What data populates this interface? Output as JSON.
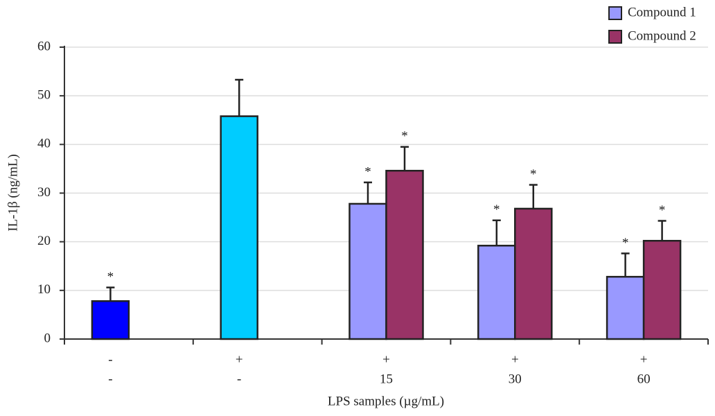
{
  "chart_data": {
    "type": "bar",
    "y_label": "IL-1β (ng/mL)",
    "x_label": "LPS samples (µg/mL)",
    "categories": [
      [
        "-",
        "-"
      ],
      [
        "+",
        "-"
      ],
      [
        "+",
        "15"
      ],
      [
        "+",
        "30"
      ],
      [
        "+",
        "60"
      ]
    ],
    "series": [
      {
        "color": "#0000ff",
        "values": [
          7.8,
          null,
          null,
          null,
          null
        ],
        "errors": [
          2.8,
          null,
          null,
          null,
          null
        ],
        "significance": [
          "*",
          null,
          null,
          null,
          null
        ]
      },
      {
        "color": "#00ccff",
        "values": [
          null,
          45.8,
          null,
          null,
          null
        ],
        "errors": [
          null,
          7.5,
          null,
          null,
          null
        ],
        "significance": [
          null,
          null,
          null,
          null,
          null
        ]
      },
      {
        "name": "Compound 1",
        "color": "#9999ff",
        "values": [
          null,
          null,
          27.8,
          19.2,
          12.8
        ],
        "errors": [
          null,
          null,
          4.4,
          5.2,
          4.8
        ],
        "significance": [
          null,
          null,
          "*",
          "*",
          "*"
        ]
      },
      {
        "name": "Compound 2",
        "color": "#993366",
        "values": [
          null,
          null,
          34.6,
          26.8,
          20.2
        ],
        "errors": [
          null,
          null,
          4.9,
          4.9,
          4.1
        ],
        "significance": [
          null,
          null,
          "*",
          "*",
          "*"
        ]
      }
    ],
    "ylim": [
      0,
      60
    ],
    "yticks": [
      0,
      10,
      20,
      30,
      40,
      50,
      60
    ],
    "grid": true,
    "legend": "upper right"
  }
}
